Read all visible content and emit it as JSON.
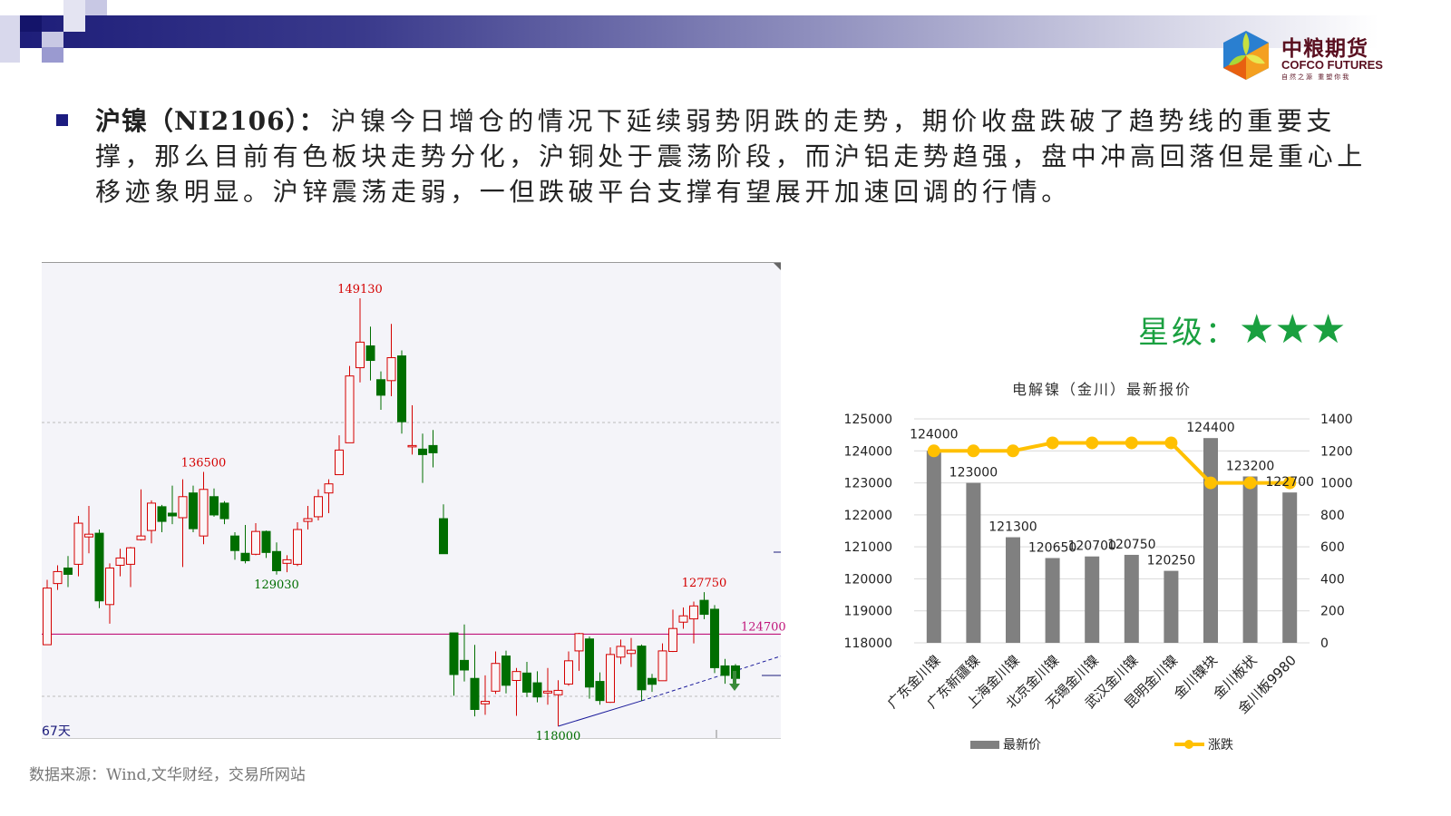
{
  "header": {
    "logo": {
      "name_cn": "中粮期货",
      "name_en": "COFCO FUTURES",
      "slogan": "自然之源 重塑你我"
    }
  },
  "commentary": {
    "title": "沪镍（NI2106）：",
    "lines": [
      "沪镍今日增仓的情况下延续弱势阴跌的走势，期价收盘跌破了趋势线的重要支",
      "撑，那么目前有色板块走势分化，沪铜处于震荡阶段，而沪铝走势趋强，盘中冲高回落但是重心上",
      "移迹象明显。沪锌震荡走弱，一但跌破平台支撑有望展开加速回调的行情。"
    ]
  },
  "rating": {
    "label": "星级：",
    "stars": 3,
    "star_glyphs": "★★★",
    "color": "#1aa040"
  },
  "source": "数据来源：Wind,文华财经，交易所网站",
  "chart_data": [
    {
      "type": "candlestick",
      "period_label": "67天",
      "colors": {
        "up": "#d40000",
        "down": "#006e00"
      },
      "horizontal_line": {
        "value": 124700,
        "label": "124700",
        "color": "#c0147a"
      },
      "annotations": [
        {
          "candle": 31,
          "value": 149130,
          "label": "149130",
          "color": "#d40000",
          "pos": "above"
        },
        {
          "candle": 16,
          "value": 136500,
          "label": "136500",
          "color": "#d40000",
          "pos": "above"
        },
        {
          "candle": 23,
          "value": 129030,
          "label": "129030",
          "color": "#006e00",
          "pos": "below"
        },
        {
          "candle": 64,
          "value": 127750,
          "label": "127750",
          "color": "#d40000",
          "pos": "above"
        },
        {
          "candle": 50,
          "value": 118000,
          "label": "118000",
          "color": "#006e00",
          "pos": "below"
        }
      ],
      "ylim": [
        118000,
        149130
      ],
      "ohlc": [
        [
          123930,
          128650,
          123930,
          128050
        ],
        [
          128380,
          129710,
          127920,
          129250
        ],
        [
          129510,
          130380,
          128120,
          129050
        ],
        [
          129780,
          133300,
          128910,
          132770
        ],
        [
          131770,
          134030,
          130580,
          131970
        ],
        [
          132040,
          132310,
          126590,
          127120
        ],
        [
          126850,
          129850,
          125460,
          129510
        ],
        [
          129710,
          130910,
          128910,
          130240
        ],
        [
          129780,
          131040,
          128120,
          130980
        ],
        [
          131570,
          135230,
          131510,
          131840
        ],
        [
          132240,
          134430,
          131310,
          134230
        ],
        [
          133970,
          134100,
          132110,
          132900
        ],
        [
          133500,
          135500,
          132700,
          133300
        ],
        [
          133170,
          135960,
          129580,
          134700
        ],
        [
          134970,
          135500,
          132110,
          132370
        ],
        [
          131840,
          136500,
          131240,
          135230
        ],
        [
          134700,
          135300,
          133240,
          133370
        ],
        [
          134230,
          134370,
          132700,
          133100
        ],
        [
          131840,
          132110,
          130110,
          130780
        ],
        [
          130580,
          132640,
          129850,
          130040
        ],
        [
          130510,
          132770,
          130440,
          132170
        ],
        [
          132170,
          132240,
          130240,
          130640
        ],
        [
          130710,
          131370,
          129030,
          129310
        ],
        [
          129850,
          130440,
          129200,
          130110
        ],
        [
          129780,
          132840,
          129650,
          132310
        ],
        [
          132900,
          134030,
          132310,
          133100
        ],
        [
          133240,
          135230,
          132970,
          134700
        ],
        [
          134970,
          135960,
          133500,
          135630
        ],
        [
          136300,
          139160,
          136300,
          138090
        ],
        [
          138620,
          144210,
          138620,
          143480
        ],
        [
          144080,
          149130,
          143010,
          145940
        ],
        [
          145670,
          147070,
          143150,
          144610
        ],
        [
          143210,
          143810,
          141020,
          142080
        ],
        [
          143140,
          147270,
          142010,
          144810
        ],
        [
          144940,
          145340,
          139290,
          140150
        ],
        [
          138420,
          141350,
          137760,
          138420
        ],
        [
          138160,
          139290,
          135700,
          137760
        ],
        [
          138420,
          139550,
          136830,
          137890
        ],
        [
          133100,
          134140,
          130550,
          130550
        ],
        [
          124790,
          124790,
          120220,
          121760
        ],
        [
          122790,
          125400,
          121260,
          122090
        ],
        [
          121480,
          123920,
          118720,
          119220
        ],
        [
          119630,
          121700,
          118830,
          119810
        ],
        [
          120550,
          123440,
          120350,
          122570
        ],
        [
          123110,
          123500,
          120390,
          120980
        ],
        [
          121330,
          122240,
          118760,
          121980
        ],
        [
          121870,
          122680,
          120130,
          120480
        ],
        [
          121160,
          122000,
          119740,
          120130
        ],
        [
          120420,
          122240,
          119570,
          120550
        ],
        [
          120290,
          121350,
          118000,
          120610
        ],
        [
          121070,
          123440,
          120940,
          122760
        ],
        [
          123480,
          124790,
          122030,
          124740
        ],
        [
          124350,
          124530,
          120000,
          120850
        ],
        [
          121260,
          121920,
          119570,
          119870
        ],
        [
          119740,
          123740,
          119700,
          123220
        ],
        [
          123030,
          124310,
          122530,
          123810
        ],
        [
          123290,
          124420,
          122310,
          123530
        ],
        [
          123830,
          123940,
          119850,
          120650
        ],
        [
          121480,
          121810,
          120500,
          121050
        ],
        [
          121310,
          124030,
          121310,
          123480
        ],
        [
          123440,
          126480,
          123400,
          125110
        ],
        [
          125570,
          126640,
          125090,
          126030
        ],
        [
          125810,
          127070,
          124030,
          126750
        ],
        [
          127160,
          127750,
          125790,
          126140
        ],
        [
          126510,
          126810,
          121870,
          122260
        ],
        [
          122390,
          122900,
          121090,
          121700
        ],
        [
          122390,
          122530,
          120830,
          121480
        ]
      ]
    },
    {
      "type": "bar+line",
      "title": "电解镍（金川）最新报价",
      "categories": [
        "广东金川镍",
        "广东新疆镍",
        "上海金川镍",
        "北京金川镍",
        "无锡金川镍",
        "武汉金川镍",
        "昆明金川镍",
        "金川镍块",
        "金川板状",
        "金川板9980"
      ],
      "series": [
        {
          "name": "最新价",
          "type": "bar",
          "axis": "left",
          "color": "#808080",
          "values": [
            124000,
            123000,
            121300,
            120650,
            120700,
            120750,
            120250,
            124400,
            123200,
            122700
          ],
          "labels": [
            "124000",
            "123000",
            "121300",
            "120650",
            "120700",
            "120750",
            "120250",
            "124400",
            "123200",
            "122700"
          ]
        },
        {
          "name": "涨跌",
          "type": "line",
          "axis": "right",
          "color": "#ffc000",
          "values": [
            1200,
            1200,
            1200,
            1250,
            1250,
            1250,
            1250,
            1000,
            1000,
            1000
          ]
        }
      ],
      "ylim_left": [
        118000,
        125000
      ],
      "yticks_left": [
        "118000",
        "119000",
        "120000",
        "121000",
        "122000",
        "123000",
        "124000",
        "125000"
      ],
      "ylim_right": [
        0,
        1400
      ],
      "yticks_right": [
        "0",
        "200",
        "400",
        "600",
        "800",
        "1000",
        "1200",
        "1400"
      ],
      "grid": true,
      "legend": "bottom"
    }
  ]
}
